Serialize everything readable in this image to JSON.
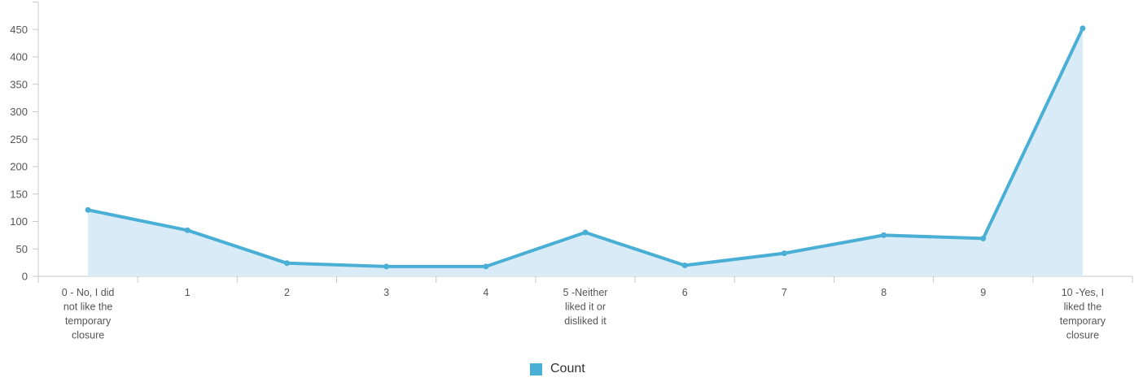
{
  "chart_data": {
    "type": "area",
    "title": "",
    "xlabel": "",
    "ylabel": "",
    "categories": [
      "0 - No, I did not like the temporary closure",
      "1",
      "2",
      "3",
      "4",
      "5 -Neither liked it or disliked it",
      "6",
      "7",
      "8",
      "9",
      "10 -Yes, I liked the temporary closure"
    ],
    "series": [
      {
        "name": "Count",
        "values": [
          121,
          84,
          24,
          18,
          18,
          80,
          20,
          42,
          75,
          69,
          452
        ]
      }
    ],
    "ylim": [
      0,
      500
    ],
    "yticks": [
      0,
      50,
      100,
      150,
      200,
      250,
      300,
      350,
      400,
      450
    ],
    "grid": false,
    "legend": "bottom-center",
    "colors": {
      "line": "#4aafd5",
      "fill": "#d9ebf6",
      "axis": "#c8c8c8",
      "text": "#555555"
    }
  }
}
